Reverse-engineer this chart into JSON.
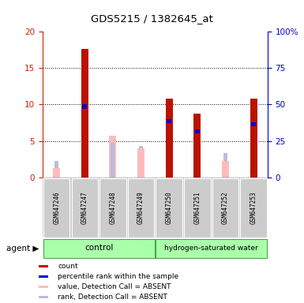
{
  "title": "GDS5215 / 1382645_at",
  "samples": [
    "GSM647246",
    "GSM647247",
    "GSM647248",
    "GSM647249",
    "GSM647250",
    "GSM647251",
    "GSM647252",
    "GSM647253"
  ],
  "red_count": [
    0,
    17.7,
    0,
    0,
    10.8,
    8.7,
    0,
    10.8
  ],
  "blue_rank": [
    0,
    9.7,
    0,
    0,
    7.7,
    6.3,
    0,
    7.3
  ],
  "pink_value_absent": [
    1.3,
    0,
    5.7,
    4.0,
    0,
    0,
    2.2,
    0
  ],
  "lightblue_rank_absent": [
    2.2,
    0,
    4.7,
    4.3,
    0,
    0,
    3.3,
    0
  ],
  "ylim_left": [
    0,
    20
  ],
  "ylim_right": [
    0,
    100
  ],
  "yticks_left": [
    0,
    5,
    10,
    15,
    20
  ],
  "yticks_right": [
    0,
    25,
    50,
    75,
    100
  ],
  "ytick_labels_right": [
    "0",
    "25",
    "50",
    "75",
    "100%"
  ],
  "color_red": "#bb1100",
  "color_blue": "#0000cc",
  "color_pink": "#ffbbbb",
  "color_lightblue": "#bbbbdd",
  "axis_left_color": "#cc2200",
  "axis_right_color": "#0000cc",
  "legend_items": [
    "count",
    "percentile rank within the sample",
    "value, Detection Call = ABSENT",
    "rank, Detection Call = ABSENT"
  ],
  "legend_colors": [
    "#bb1100",
    "#0000cc",
    "#ffbbbb",
    "#bbbbdd"
  ],
  "group_control_label": "control",
  "group_hydrogen_label": "hydrogen-saturated water",
  "agent_label": "agent ▶"
}
